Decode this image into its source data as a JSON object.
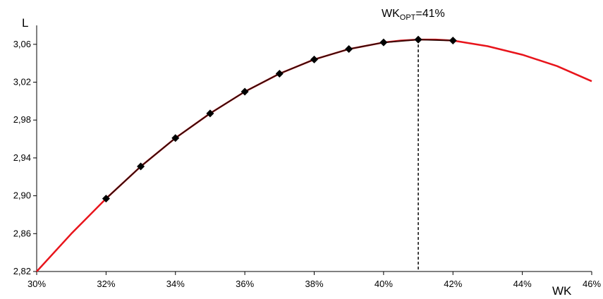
{
  "chart_data": {
    "type": "line",
    "xlabel": "WK",
    "ylabel": "L",
    "xlim": [
      0.3,
      0.46
    ],
    "ylim": [
      2.82,
      3.08
    ],
    "x_ticks": [
      "30%",
      "32%",
      "34%",
      "36%",
      "38%",
      "40%",
      "42%",
      "44%",
      "46%"
    ],
    "y_ticks": [
      "2,82",
      "2,86",
      "2,90",
      "2,94",
      "2,98",
      "3,02",
      "3,06"
    ],
    "grid": false,
    "colors": {
      "fit_curve": "#e8141b",
      "data_line": "#3a0a08",
      "markers": "#000000",
      "annotation_line": "#000000"
    },
    "series": [
      {
        "type": "line",
        "x": [
          0.3,
          0.31,
          0.32,
          0.33,
          0.34,
          0.35,
          0.36,
          0.37,
          0.38,
          0.39,
          0.4,
          0.405,
          0.41,
          0.415,
          0.42,
          0.43,
          0.44,
          0.45,
          0.46
        ],
        "y": [
          2.82,
          2.86,
          2.897,
          2.931,
          2.961,
          2.987,
          3.01,
          3.029,
          3.044,
          3.055,
          3.062,
          3.064,
          3.065,
          3.065,
          3.064,
          3.058,
          3.049,
          3.037,
          3.021
        ]
      },
      {
        "type": "line-markers",
        "marker": "diamond",
        "x": [
          0.32,
          0.33,
          0.34,
          0.35,
          0.36,
          0.37,
          0.38,
          0.39,
          0.4,
          0.41,
          0.42
        ],
        "y": [
          2.897,
          2.931,
          2.961,
          2.987,
          3.01,
          3.029,
          3.044,
          3.055,
          3.062,
          3.065,
          3.064
        ]
      }
    ],
    "annotation": {
      "label_main": "WK",
      "label_sub": "OPT",
      "label_value": "=41%",
      "x": 0.41,
      "y_top": 3.065
    }
  }
}
